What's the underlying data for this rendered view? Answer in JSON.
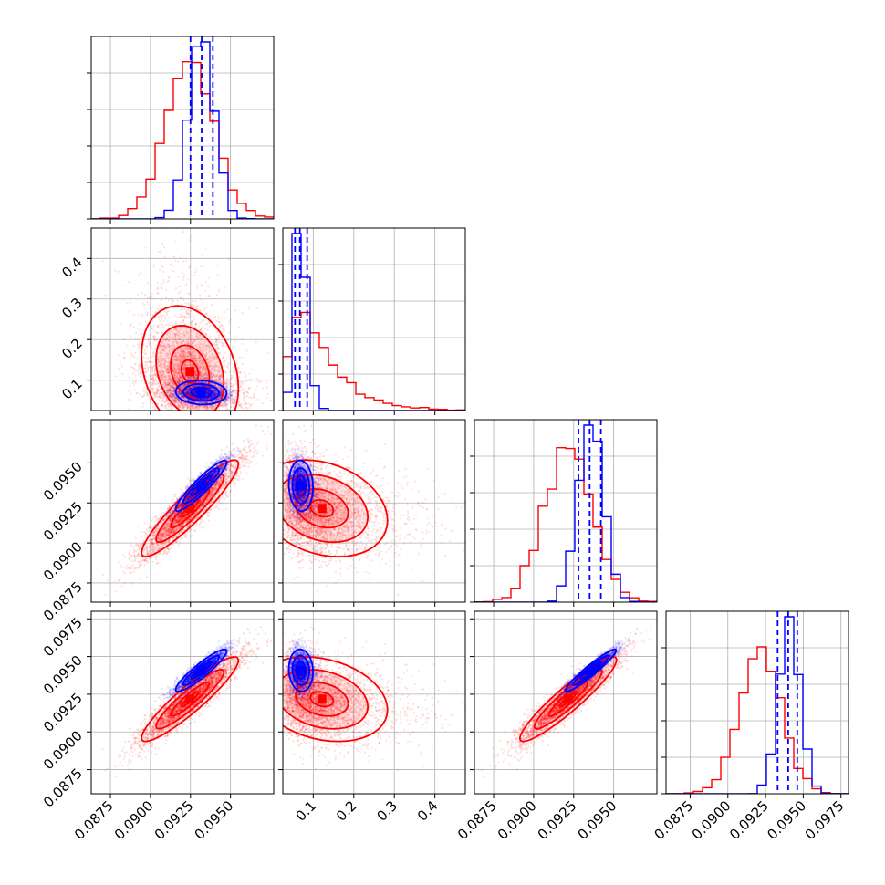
{
  "chart_data": {
    "type": "corner",
    "colors": {
      "blue": "#0000ff",
      "red": "#ff0000",
      "grid": "#b0b0b0",
      "axis": "#000000"
    },
    "n_params": 4,
    "params": [
      {
        "lim": [
          0.0863,
          0.0977
        ],
        "ticks": [
          0.0875,
          0.09,
          0.0925,
          0.095
        ],
        "tick_labels": [
          "0.0875",
          "0.0900",
          "0.0925",
          "0.0950"
        ]
      },
      {
        "lim": [
          0.025,
          0.475
        ],
        "ticks": [
          0.1,
          0.2,
          0.3,
          0.4
        ],
        "tick_labels": [
          "0.1",
          "0.2",
          "0.3",
          "0.4"
        ]
      },
      {
        "lim": [
          0.0863,
          0.0977
        ],
        "ticks": [
          0.0875,
          0.09,
          0.0925,
          0.095
        ],
        "tick_labels": [
          "0.0875",
          "0.0900",
          "0.0925",
          "0.0950"
        ]
      },
      {
        "lim": [
          0.0859,
          0.098
        ],
        "ticks": [
          0.0875,
          0.09,
          0.0925,
          0.095,
          0.0975
        ],
        "tick_labels": [
          "0.0875",
          "0.0900",
          "0.0925",
          "0.0950",
          "0.0975"
        ]
      }
    ],
    "series": [
      {
        "color": "#0000ff",
        "means": [
          0.0932,
          0.07,
          0.0936,
          0.0941
        ],
        "sds": [
          0.0008,
          0.015,
          0.0008,
          0.0007
        ],
        "corr": [
          [
            1.0,
            -0.1,
            0.93,
            0.92
          ],
          [
            -0.1,
            1.0,
            -0.1,
            -0.1
          ],
          [
            0.93,
            -0.1,
            1.0,
            0.95
          ],
          [
            0.92,
            -0.1,
            0.95,
            1.0
          ]
        ],
        "quantiles": [
          [
            0.0925,
            0.0932,
            0.0939
          ],
          [
            0.055,
            0.067,
            0.085
          ],
          [
            0.0928,
            0.0935,
            0.0942
          ],
          [
            0.0933,
            0.094,
            0.0946
          ]
        ]
      },
      {
        "color": "#ff0000",
        "means": [
          0.0925,
          0.12,
          0.0922,
          0.0922
        ],
        "sds": [
          0.0015,
          0.08,
          0.0015,
          0.0014
        ],
        "corr": [
          [
            1.0,
            -0.25,
            0.92,
            0.92
          ],
          [
            -0.25,
            1.0,
            -0.25,
            -0.25
          ],
          [
            0.92,
            -0.25,
            1.0,
            0.93
          ],
          [
            0.92,
            -0.25,
            0.93,
            1.0
          ]
        ]
      }
    ],
    "grid": true
  }
}
